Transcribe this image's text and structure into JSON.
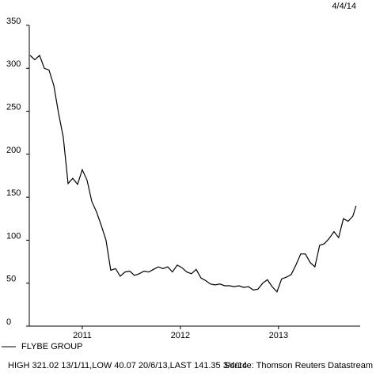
{
  "chart_data": {
    "type": "line",
    "date": "4/4/14",
    "footnote": "HIGH 321.02 13/1/11,LOW 40.07 20/6/13,LAST 141.35 3/4/14",
    "source": "Source: Thomson Reuters Datastream",
    "legend": "bottom-left",
    "grid": false,
    "x": [
      2010.968,
      2011.016,
      2011.065,
      2011.113,
      2011.161,
      2011.21,
      2011.258,
      2011.306,
      2011.355,
      2011.403,
      2011.452,
      2011.5,
      2011.548,
      2011.597,
      2011.645,
      2011.694,
      2011.742,
      2011.79,
      2011.839,
      2011.887,
      2011.935,
      2011.984,
      2012.032,
      2012.081,
      2012.129,
      2012.177,
      2012.226,
      2012.274,
      2012.323,
      2012.371,
      2012.419,
      2012.468,
      2012.516,
      2012.565,
      2012.613,
      2012.661,
      2012.71,
      2012.758,
      2012.806,
      2012.855,
      2012.903,
      2012.952,
      2013.0,
      2013.048,
      2013.097,
      2013.145,
      2013.194,
      2013.242,
      2013.29,
      2013.339,
      2013.387,
      2013.435,
      2013.484,
      2013.532,
      2013.581,
      2013.629,
      2013.677,
      2013.726,
      2013.774,
      2013.823,
      2013.871,
      2013.919,
      2013.968,
      2014.016,
      2014.065,
      2014.113,
      2014.161,
      2014.21,
      2014.258,
      2014.29
    ],
    "series": [
      {
        "name": "FLYBE GROUP",
        "color": "#000000",
        "values": [
          315,
          310,
          315,
          300,
          298,
          280,
          248,
          220,
          166,
          172,
          165,
          182,
          170,
          145,
          133,
          117,
          100,
          65,
          67,
          58,
          63,
          64,
          59,
          61,
          64,
          63,
          66,
          69,
          67,
          69,
          63,
          71,
          68,
          63,
          61,
          66,
          56,
          53,
          49,
          48,
          49,
          47,
          47,
          46,
          47,
          45,
          46,
          42,
          43,
          50,
          54,
          46,
          40,
          55,
          57,
          60,
          71,
          84,
          84,
          74,
          69,
          94,
          96,
          102,
          110,
          103,
          125,
          122,
          128,
          140
        ]
      }
    ],
    "xlim": [
      2010.96,
      2014.3
    ],
    "xticks": [
      {
        "value": 2011.5,
        "label": "2011"
      },
      {
        "value": 2012.5,
        "label": "2012"
      },
      {
        "value": 2013.5,
        "label": "2013"
      }
    ],
    "ylim": [
      0,
      350
    ],
    "yticks": [
      0,
      50,
      100,
      150,
      200,
      250,
      300,
      350
    ]
  }
}
